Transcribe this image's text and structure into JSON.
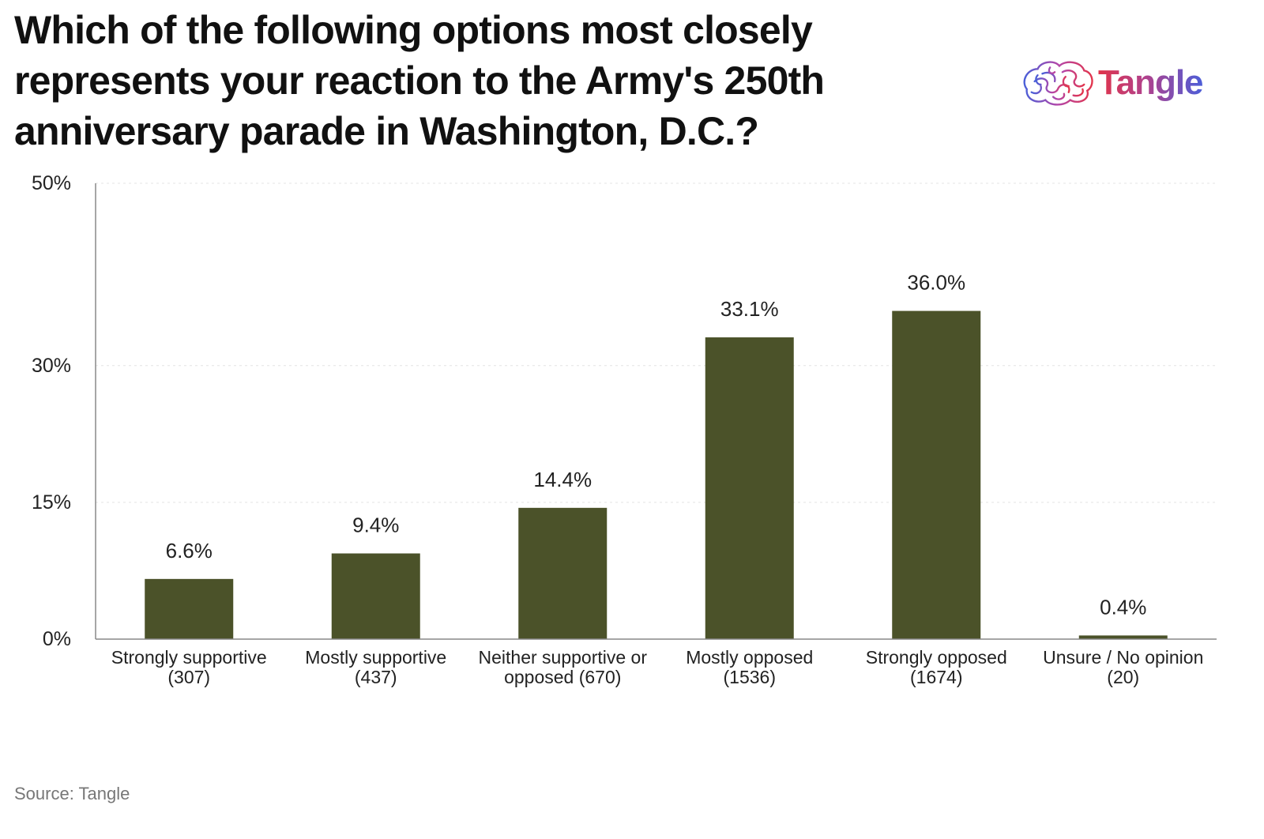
{
  "header": {
    "title": "Which of the following options most closely represents your reaction to the Army's 250th anniversary parade in Washington, D.C.?",
    "logo_text": "Tangle"
  },
  "footer": {
    "source": "Source: Tangle"
  },
  "colors": {
    "bar": "#4b5229",
    "axis": "#888888",
    "grid": "#e4e4e4",
    "text": "#111111",
    "source": "#777777"
  },
  "chart_data": {
    "type": "bar",
    "title": "Which of the following options most closely represents your reaction to the Army's 250th anniversary parade in Washington, D.C.?",
    "categories": [
      [
        "Strongly supportive",
        "(307)"
      ],
      [
        "Mostly supportive",
        "(437)"
      ],
      [
        "Neither supportive or",
        "opposed (670)"
      ],
      [
        "Mostly opposed",
        "(1536)"
      ],
      [
        "Strongly opposed",
        "(1674)"
      ],
      [
        "Unsure / No opinion",
        "(20)"
      ]
    ],
    "values": [
      6.6,
      9.4,
      14.4,
      33.1,
      36.0,
      0.4
    ],
    "value_labels": [
      "6.6%",
      "9.4%",
      "14.4%",
      "33.1%",
      "36.0%",
      "0.4%"
    ],
    "yticks": [
      0,
      15,
      30,
      50
    ],
    "ytick_labels": [
      "0%",
      "15%",
      "30%",
      "50%"
    ],
    "ylim": [
      0,
      50
    ],
    "xlabel": "",
    "ylabel": "",
    "grid": true
  }
}
